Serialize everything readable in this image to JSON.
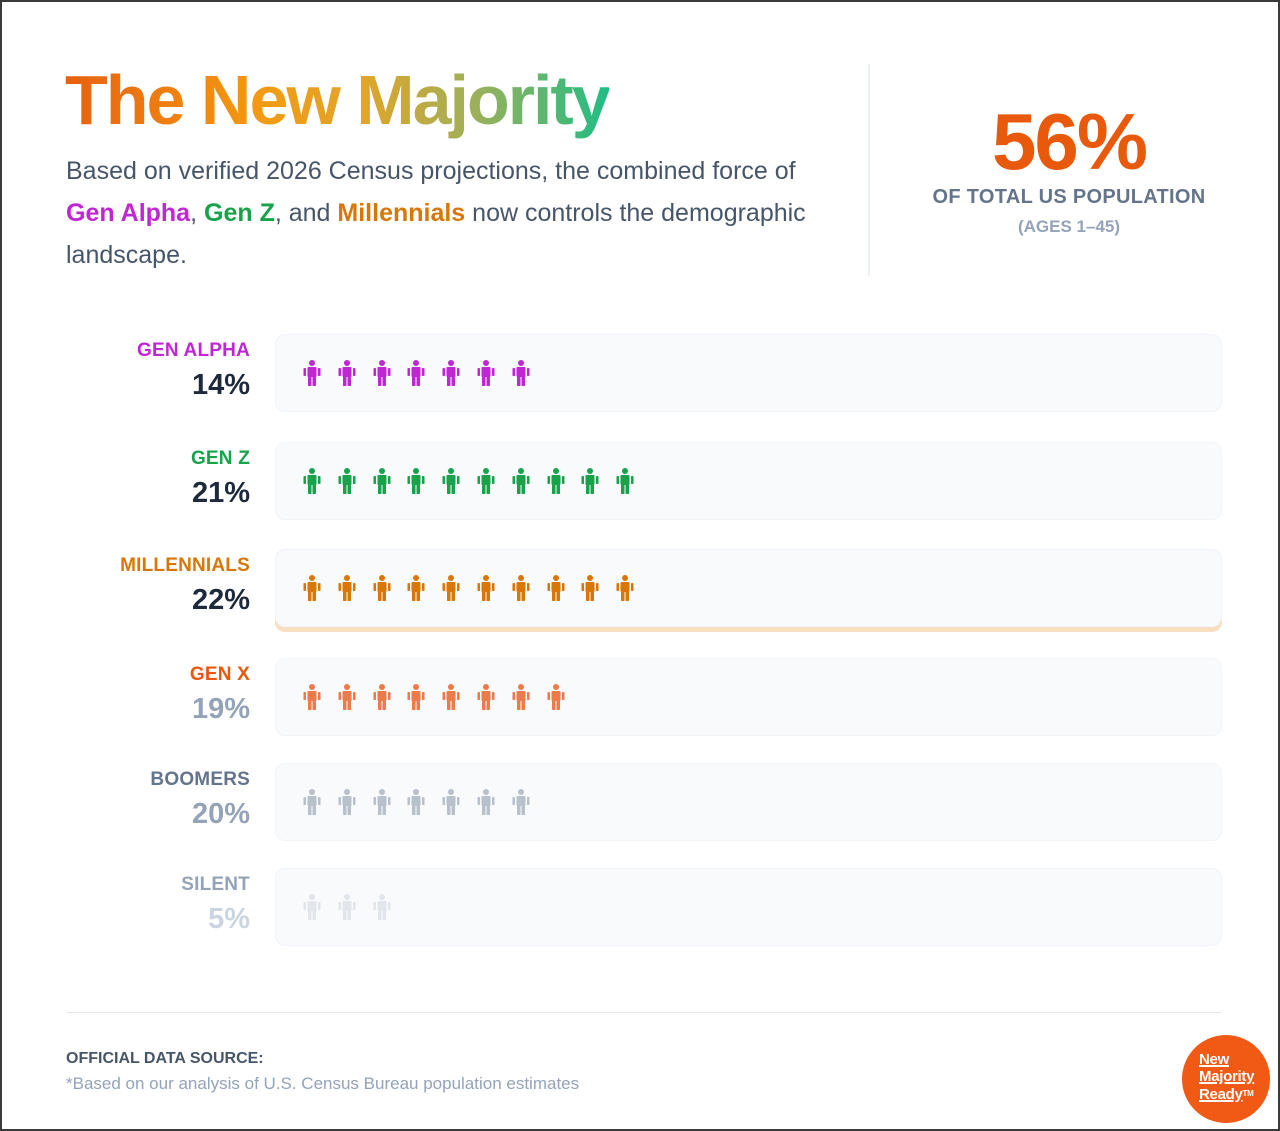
{
  "header": {
    "title": "The New Majority",
    "intro_part1": "Based on verified 2026 Census projections, the combined force of ",
    "gen_alpha": "Gen Alpha",
    "comma": ", ",
    "gen_z": "Gen Z",
    "and": ", and ",
    "millennials": "Millennials",
    "intro_part2": " now controls the demographic landscape."
  },
  "stat": {
    "value": "56%",
    "label": "OF TOTAL US POPULATION",
    "sub": "(AGES 1–45)"
  },
  "colors": {
    "gen_alpha": "#c026d3",
    "gen_z": "#16a34a",
    "millennials": "#d97706",
    "gen_x": "#ea580c",
    "stat": "#e8590c"
  },
  "chart_data": {
    "type": "bar",
    "title": "The New Majority",
    "unit_icon": "person-icon",
    "categories": [
      "GEN ALPHA",
      "GEN Z",
      "MILLENNIALS",
      "GEN X",
      "BOOMERS",
      "SILENT"
    ],
    "values": [
      14,
      21,
      22,
      19,
      20,
      5
    ],
    "icon_counts": [
      7,
      10,
      10,
      8,
      7,
      3
    ],
    "rows": [
      {
        "label": "GEN ALPHA",
        "pct": "14%",
        "icons": 7,
        "label_color": "#c026d3",
        "pct_color": "#1e293b",
        "icon_color": "#c026d3",
        "highlight": false
      },
      {
        "label": "GEN Z",
        "pct": "21%",
        "icons": 10,
        "label_color": "#16a34a",
        "pct_color": "#1e293b",
        "icon_color": "#16a34a",
        "highlight": false
      },
      {
        "label": "MILLENNIALS",
        "pct": "22%",
        "icons": 10,
        "label_color": "#d97706",
        "pct_color": "#1e293b",
        "icon_color": "#d97706",
        "highlight": true
      },
      {
        "label": "GEN X",
        "pct": "19%",
        "icons": 8,
        "label_color": "#ea580c",
        "pct_color": "#94a3b8",
        "icon_color": "#ee7a4a",
        "highlight": false
      },
      {
        "label": "BOOMERS",
        "pct": "20%",
        "icons": 7,
        "label_color": "#64748b",
        "pct_color": "#94a3b8",
        "icon_color": "#b8c0cc",
        "highlight": false
      },
      {
        "label": "SILENT",
        "pct": "5%",
        "icons": 3,
        "label_color": "#94a3b8",
        "pct_color": "#cbd5e1",
        "icon_color": "#e2e6ec",
        "highlight": false
      }
    ]
  },
  "footer": {
    "source_title": "OFFICIAL DATA SOURCE:",
    "source_note": "*Based on our analysis of U.S. Census Bureau population estimates",
    "badge_line1": "New",
    "badge_line2": "Majority",
    "badge_line3": "Ready",
    "badge_tm": "TM"
  }
}
